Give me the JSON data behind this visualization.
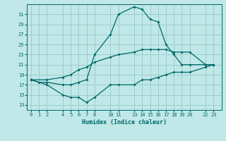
{
  "xlabel": "Humidex (Indice chaleur)",
  "bg_color": "#c0e8e8",
  "line_color": "#006868",
  "grid_color": "#98c8c8",
  "ylim": [
    12,
    33
  ],
  "yticks": [
    13,
    15,
    17,
    19,
    21,
    23,
    25,
    27,
    29,
    31
  ],
  "xticks": [
    0,
    1,
    2,
    4,
    5,
    6,
    7,
    8,
    10,
    11,
    13,
    14,
    15,
    16,
    17,
    18,
    19,
    20,
    22,
    23
  ],
  "xlim": [
    -0.5,
    24
  ],
  "line1_x": [
    0,
    1,
    2,
    4,
    5,
    6,
    7,
    8,
    10,
    11,
    13,
    14,
    15,
    16,
    17,
    18,
    19,
    20,
    22,
    23
  ],
  "line1_y": [
    18,
    17.5,
    17.5,
    17,
    17,
    17.5,
    18,
    23,
    27,
    31,
    32.5,
    32,
    30,
    29.5,
    25,
    23,
    21,
    21,
    21,
    21
  ],
  "line2_x": [
    0,
    2,
    4,
    5,
    6,
    7,
    8,
    10,
    11,
    13,
    14,
    15,
    16,
    17,
    18,
    19,
    20,
    22,
    23
  ],
  "line2_y": [
    18,
    18,
    18.5,
    19,
    20,
    20.5,
    21.5,
    22.5,
    23,
    23.5,
    24,
    24,
    24,
    24,
    23.5,
    23.5,
    23.5,
    21,
    21
  ],
  "line3_x": [
    0,
    2,
    4,
    5,
    6,
    7,
    8,
    10,
    11,
    13,
    14,
    15,
    16,
    17,
    18,
    19,
    20,
    22,
    23
  ],
  "line3_y": [
    18,
    17,
    15,
    14.5,
    14.5,
    13.5,
    14.5,
    17,
    17,
    17,
    18,
    18,
    18.5,
    19,
    19.5,
    19.5,
    19.5,
    20.5,
    21
  ]
}
